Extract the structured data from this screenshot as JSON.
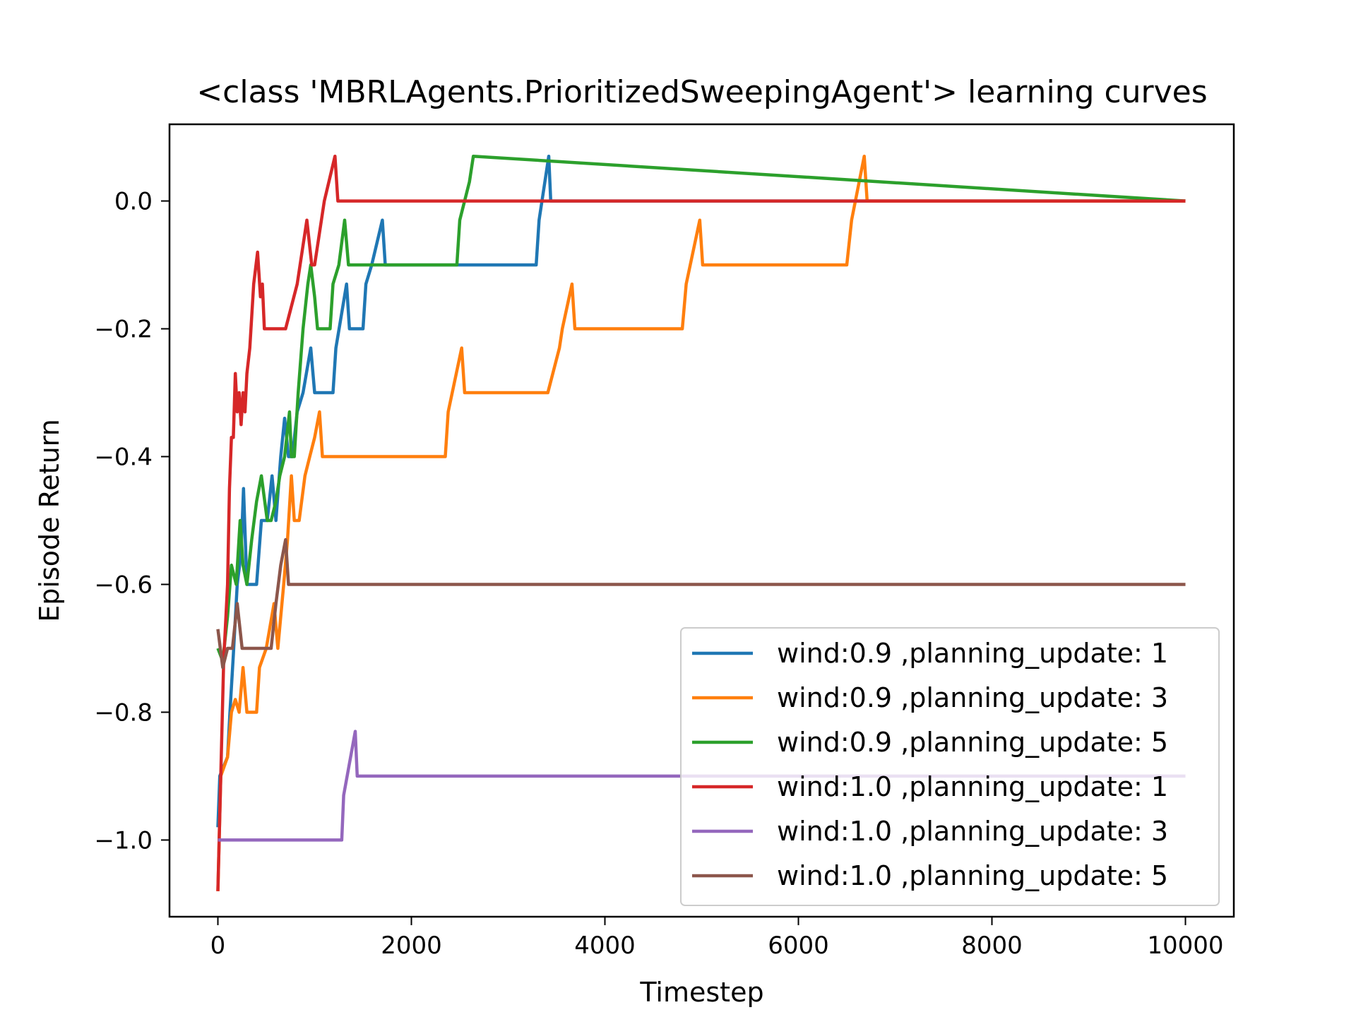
{
  "chart_data": {
    "type": "line",
    "title": "<class 'MBRLAgents.PrioritizedSweepingAgent'> learning curves",
    "xlabel": "Timestep",
    "ylabel": "Episode Return",
    "xlim": [
      -500,
      10500
    ],
    "ylim": [
      -1.12,
      0.12
    ],
    "xticks": [
      0,
      2000,
      4000,
      6000,
      8000,
      10000
    ],
    "xtick_labels": [
      "0",
      "2000",
      "4000",
      "6000",
      "8000",
      "10000"
    ],
    "yticks": [
      -1.0,
      -0.8,
      -0.6,
      -0.4,
      -0.2,
      0.0
    ],
    "ytick_labels": [
      "−1.0",
      "−0.8",
      "−0.6",
      "−0.4",
      "−0.2",
      "0.0"
    ],
    "grid": false,
    "legend_position": "lower-right",
    "series": [
      {
        "name": "wind:0.9 ,planning_update: 1",
        "color": "#1f77b4",
        "x": [
          0,
          20,
          100,
          125,
          160,
          200,
          240,
          265,
          300,
          350,
          400,
          450,
          510,
          560,
          600,
          650,
          690,
          730,
          770,
          820,
          880,
          960,
          1000,
          1030,
          1190,
          1220,
          1330,
          1360,
          1380,
          1500,
          1530,
          1590,
          1700,
          1730,
          3290,
          3320,
          3420,
          3440,
          10000
        ],
        "y": [
          -0.98,
          -0.9,
          -0.87,
          -0.8,
          -0.71,
          -0.6,
          -0.55,
          -0.45,
          -0.6,
          -0.6,
          -0.6,
          -0.5,
          -0.5,
          -0.43,
          -0.5,
          -0.4,
          -0.34,
          -0.4,
          -0.4,
          -0.33,
          -0.3,
          -0.23,
          -0.3,
          -0.3,
          -0.3,
          -0.23,
          -0.13,
          -0.2,
          -0.2,
          -0.2,
          -0.13,
          -0.1,
          -0.03,
          -0.1,
          -0.1,
          -0.03,
          0.07,
          0,
          0
        ]
      },
      {
        "name": "wind:0.9 ,planning_update: 3",
        "color": "#ff7f0e",
        "x": [
          0,
          30,
          100,
          140,
          180,
          220,
          260,
          300,
          350,
          400,
          430,
          500,
          580,
          620,
          680,
          720,
          760,
          790,
          840,
          900,
          950,
          1000,
          1050,
          1080,
          2200,
          2350,
          2380,
          2520,
          2550,
          3380,
          3410,
          3530,
          3560,
          3660,
          3690,
          4800,
          4840,
          4980,
          5010,
          6500,
          6550,
          6680,
          6710,
          10000
        ],
        "y": [
          -1.08,
          -0.9,
          -0.87,
          -0.8,
          -0.78,
          -0.8,
          -0.73,
          -0.8,
          -0.8,
          -0.8,
          -0.73,
          -0.7,
          -0.63,
          -0.7,
          -0.6,
          -0.53,
          -0.43,
          -0.5,
          -0.5,
          -0.43,
          -0.4,
          -0.37,
          -0.33,
          -0.4,
          -0.4,
          -0.4,
          -0.33,
          -0.23,
          -0.3,
          -0.3,
          -0.3,
          -0.23,
          -0.2,
          -0.13,
          -0.2,
          -0.2,
          -0.13,
          -0.03,
          -0.1,
          -0.1,
          -0.03,
          0.07,
          0,
          0
        ]
      },
      {
        "name": "wind:0.9 ,planning_update: 5",
        "color": "#2ca02c",
        "x": [
          0,
          50,
          100,
          140,
          190,
          230,
          260,
          300,
          350,
          400,
          450,
          510,
          550,
          600,
          640,
          690,
          740,
          760,
          790,
          830,
          880,
          930,
          960,
          1000,
          1030,
          1100,
          1160,
          1190,
          1250,
          1310,
          1350,
          1400,
          1500,
          2000,
          2470,
          2500,
          2600,
          2640,
          10000
        ],
        "y": [
          -0.7,
          -0.72,
          -0.65,
          -0.57,
          -0.6,
          -0.5,
          -0.57,
          -0.6,
          -0.53,
          -0.47,
          -0.43,
          -0.5,
          -0.5,
          -0.47,
          -0.43,
          -0.4,
          -0.33,
          -0.4,
          -0.4,
          -0.3,
          -0.2,
          -0.13,
          -0.1,
          -0.15,
          -0.2,
          -0.2,
          -0.2,
          -0.13,
          -0.1,
          -0.03,
          -0.1,
          -0.1,
          -0.1,
          -0.1,
          -0.1,
          -0.03,
          0.03,
          0.07,
          0
        ]
      },
      {
        "name": "wind:1.0 ,planning_update: 1",
        "color": "#d62728",
        "x": [
          0,
          60,
          100,
          120,
          140,
          160,
          180,
          200,
          220,
          240,
          260,
          280,
          300,
          330,
          370,
          410,
          440,
          460,
          480,
          500,
          700,
          820,
          850,
          920,
          970,
          1000,
          1070,
          1100,
          1210,
          1240,
          10000
        ],
        "y": [
          -1.08,
          -0.72,
          -0.6,
          -0.45,
          -0.37,
          -0.37,
          -0.27,
          -0.33,
          -0.3,
          -0.35,
          -0.3,
          -0.33,
          -0.27,
          -0.23,
          -0.13,
          -0.08,
          -0.15,
          -0.13,
          -0.2,
          -0.2,
          -0.2,
          -0.13,
          -0.1,
          -0.03,
          -0.1,
          -0.1,
          -0.03,
          0,
          0.07,
          0,
          0
        ]
      },
      {
        "name": "wind:1.0 ,planning_update: 3",
        "color": "#9467bd",
        "x": [
          0,
          1280,
          1300,
          1420,
          1440,
          10000
        ],
        "y": [
          -1.0,
          -1.0,
          -0.93,
          -0.83,
          -0.9,
          -0.9
        ]
      },
      {
        "name": "wind:1.0 ,planning_update: 5",
        "color": "#8c564b",
        "x": [
          0,
          50,
          100,
          150,
          200,
          250,
          300,
          350,
          400,
          480,
          550,
          600,
          650,
          700,
          730,
          10000
        ],
        "y": [
          -0.67,
          -0.73,
          -0.7,
          -0.7,
          -0.63,
          -0.7,
          -0.7,
          -0.7,
          -0.7,
          -0.7,
          -0.7,
          -0.63,
          -0.57,
          -0.53,
          -0.6,
          -0.6
        ]
      }
    ]
  }
}
